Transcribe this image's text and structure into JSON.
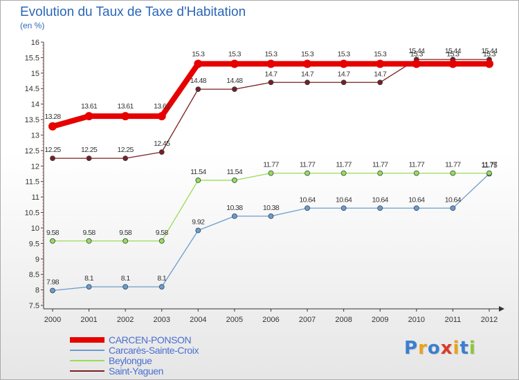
{
  "title": "Evolution du Taux de Taxe d'Habitation",
  "subtitle": "(en %)",
  "chart_data": {
    "type": "line",
    "title": "Evolution du Taux de Taxe d'Habitation",
    "ylabel": "(en %)",
    "x": [
      "2000",
      "2001",
      "2002",
      "2003",
      "2004",
      "2005",
      "2006",
      "2007",
      "2008",
      "2009",
      "2010",
      "2011",
      "2012"
    ],
    "ylim": [
      7.5,
      16
    ],
    "yticks": [
      "7.5",
      "8",
      "8.5",
      "9",
      "9.5",
      "10",
      "10.5",
      "11",
      "11.5",
      "12",
      "12.5",
      "13",
      "13.5",
      "14",
      "14.5",
      "15",
      "15.5",
      "16"
    ],
    "grid": false,
    "legend_position": "bottom-left",
    "series": [
      {
        "name": "CARCEN-PONSON",
        "color": "#e60000",
        "values": [
          13.28,
          13.61,
          13.61,
          13.61,
          15.3,
          15.3,
          15.3,
          15.3,
          15.3,
          15.3,
          15.3,
          15.3,
          15.3
        ],
        "labels": [
          "13.28",
          "13.61",
          "13.61",
          "13.61",
          "15.3",
          "15.3",
          "15.3",
          "15.3",
          "15.3",
          "15.3",
          "15.3",
          "15.3",
          "15.3"
        ]
      },
      {
        "name": "Carcarès-Sainte-Croix",
        "color": "#6c9ccc",
        "values": [
          7.98,
          8.1,
          8.1,
          8.1,
          9.92,
          10.38,
          10.38,
          10.64,
          10.64,
          10.64,
          10.64,
          10.64,
          11.75
        ],
        "labels": [
          "7.98",
          "8.1",
          "8.1",
          "8.1",
          "9.92",
          "10.38",
          "10.38",
          "10.64",
          "10.64",
          "10.64",
          "10.64",
          "10.64",
          "11.75"
        ]
      },
      {
        "name": "Beylongue",
        "color": "#99dd55",
        "values": [
          9.58,
          9.58,
          9.58,
          9.58,
          11.54,
          11.54,
          11.77,
          11.77,
          11.77,
          11.77,
          11.77,
          11.77,
          11.77
        ],
        "labels": [
          "9.58",
          "9.58",
          "9.58",
          "9.58",
          "11.54",
          "11.54",
          "11.77",
          "11.77",
          "11.77",
          "11.77",
          "11.77",
          "11.77",
          "11.77"
        ]
      },
      {
        "name": "Saint-Yaguen",
        "color": "#7a1f1f",
        "values": [
          12.25,
          12.25,
          12.25,
          12.45,
          14.48,
          14.48,
          14.7,
          14.7,
          14.7,
          14.7,
          15.44,
          15.44,
          15.44
        ],
        "labels": [
          "12.25",
          "12.25",
          "12.25",
          "12.45",
          "14.48",
          "14.48",
          "14.7",
          "14.7",
          "14.7",
          "14.7",
          "15.44",
          "15.44",
          "15.44"
        ]
      }
    ]
  },
  "legend": [
    {
      "label": "CARCEN-PONSON",
      "color": "#e60000"
    },
    {
      "label": "Carcarès-Sainte-Croix",
      "color": "#6c9ccc"
    },
    {
      "label": "Beylongue",
      "color": "#99dd55"
    },
    {
      "label": "Saint-Yaguen",
      "color": "#7a1f1f"
    }
  ],
  "logo": {
    "text": "Proxiti",
    "letters": [
      "P",
      "r",
      "o",
      "x",
      "i",
      "t",
      "i"
    ],
    "colors": [
      "#3a7fd0",
      "#e8a317",
      "#3a7fd0",
      "#d93a2b",
      "#e8a317",
      "#3a7fd0",
      "#8cc63f"
    ]
  }
}
